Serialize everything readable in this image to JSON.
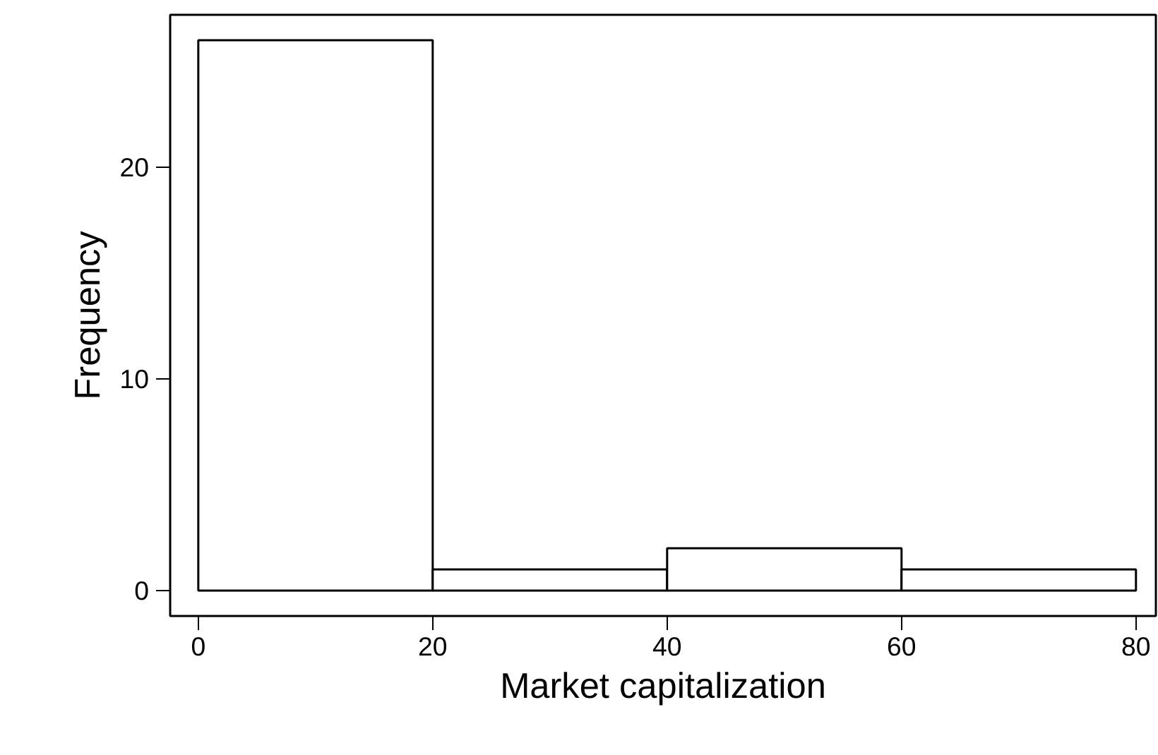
{
  "chart_data": {
    "type": "histogram",
    "xlabel": "Market capitalization",
    "ylabel": "Frequency",
    "bins": [
      0,
      20,
      40,
      60,
      80
    ],
    "values": [
      26,
      1,
      2,
      1
    ],
    "color": "#ffffff",
    "xlim": [
      -2.4,
      81.7
    ],
    "ylim": [
      -1.2,
      27.2
    ],
    "xticks": [
      0,
      20,
      40,
      60,
      80
    ],
    "yticks": [
      0,
      10,
      20
    ],
    "grid": false
  }
}
